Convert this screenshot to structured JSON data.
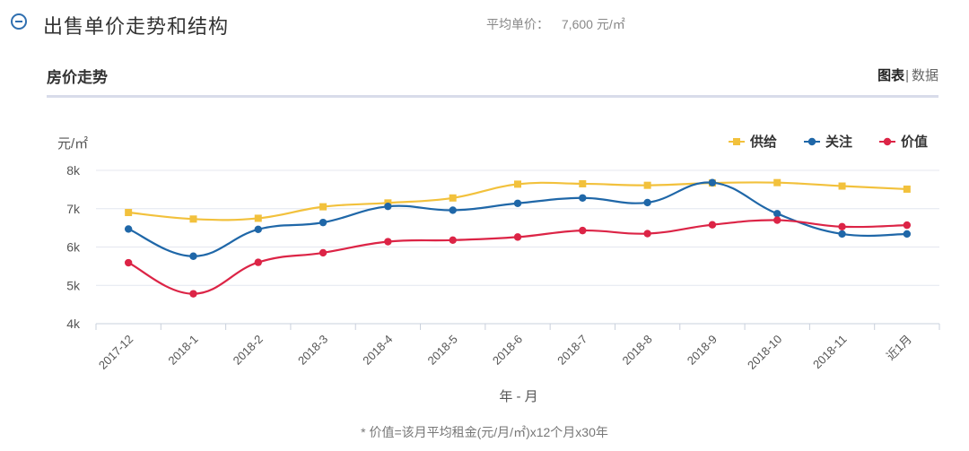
{
  "header": {
    "title": "出售单价走势和结构",
    "avg_price_label": "平均单价：",
    "avg_price_value": "7,600 元/㎡"
  },
  "panel": {
    "title": "房价走势",
    "view_chart": "图表",
    "view_sep": "|",
    "view_data": "数据"
  },
  "footnote": "* 价值=该月平均租金(元/月/㎡)x12个月x30年",
  "colors": {
    "supply": "#f2c13c",
    "attention": "#1f67a8",
    "value": "#dc2446",
    "accent": "#2f6fb0"
  },
  "chart_data": {
    "type": "line",
    "ylabel": "元/㎡",
    "xlabel": "年 - 月",
    "categories": [
      "2017-12",
      "2018-1",
      "2018-2",
      "2018-3",
      "2018-4",
      "2018-5",
      "2018-6",
      "2018-7",
      "2018-8",
      "2018-9",
      "2018-10",
      "2018-11",
      "近1月"
    ],
    "y_ticks": [
      4000,
      5000,
      6000,
      7000,
      8000
    ],
    "y_tick_labels": [
      "4k",
      "5k",
      "6k",
      "7k",
      "8k"
    ],
    "ylim": [
      4000,
      8000
    ],
    "legend_position": "top-right",
    "grid": true,
    "series": [
      {
        "name": "供给",
        "color": "#f2c13c",
        "marker": "square",
        "values": [
          6900,
          6730,
          6750,
          7050,
          7150,
          7280,
          7640,
          7650,
          7610,
          7670,
          7680,
          7590,
          7510
        ]
      },
      {
        "name": "关注",
        "color": "#1f67a8",
        "marker": "circle",
        "values": [
          6470,
          5760,
          6460,
          6640,
          7060,
          6960,
          7140,
          7280,
          7160,
          7680,
          6870,
          6340,
          6340
        ]
      },
      {
        "name": "价值",
        "color": "#dc2446",
        "marker": "circle",
        "values": [
          5590,
          4780,
          5600,
          5850,
          6140,
          6180,
          6260,
          6430,
          6350,
          6580,
          6700,
          6530,
          6570
        ]
      }
    ]
  }
}
